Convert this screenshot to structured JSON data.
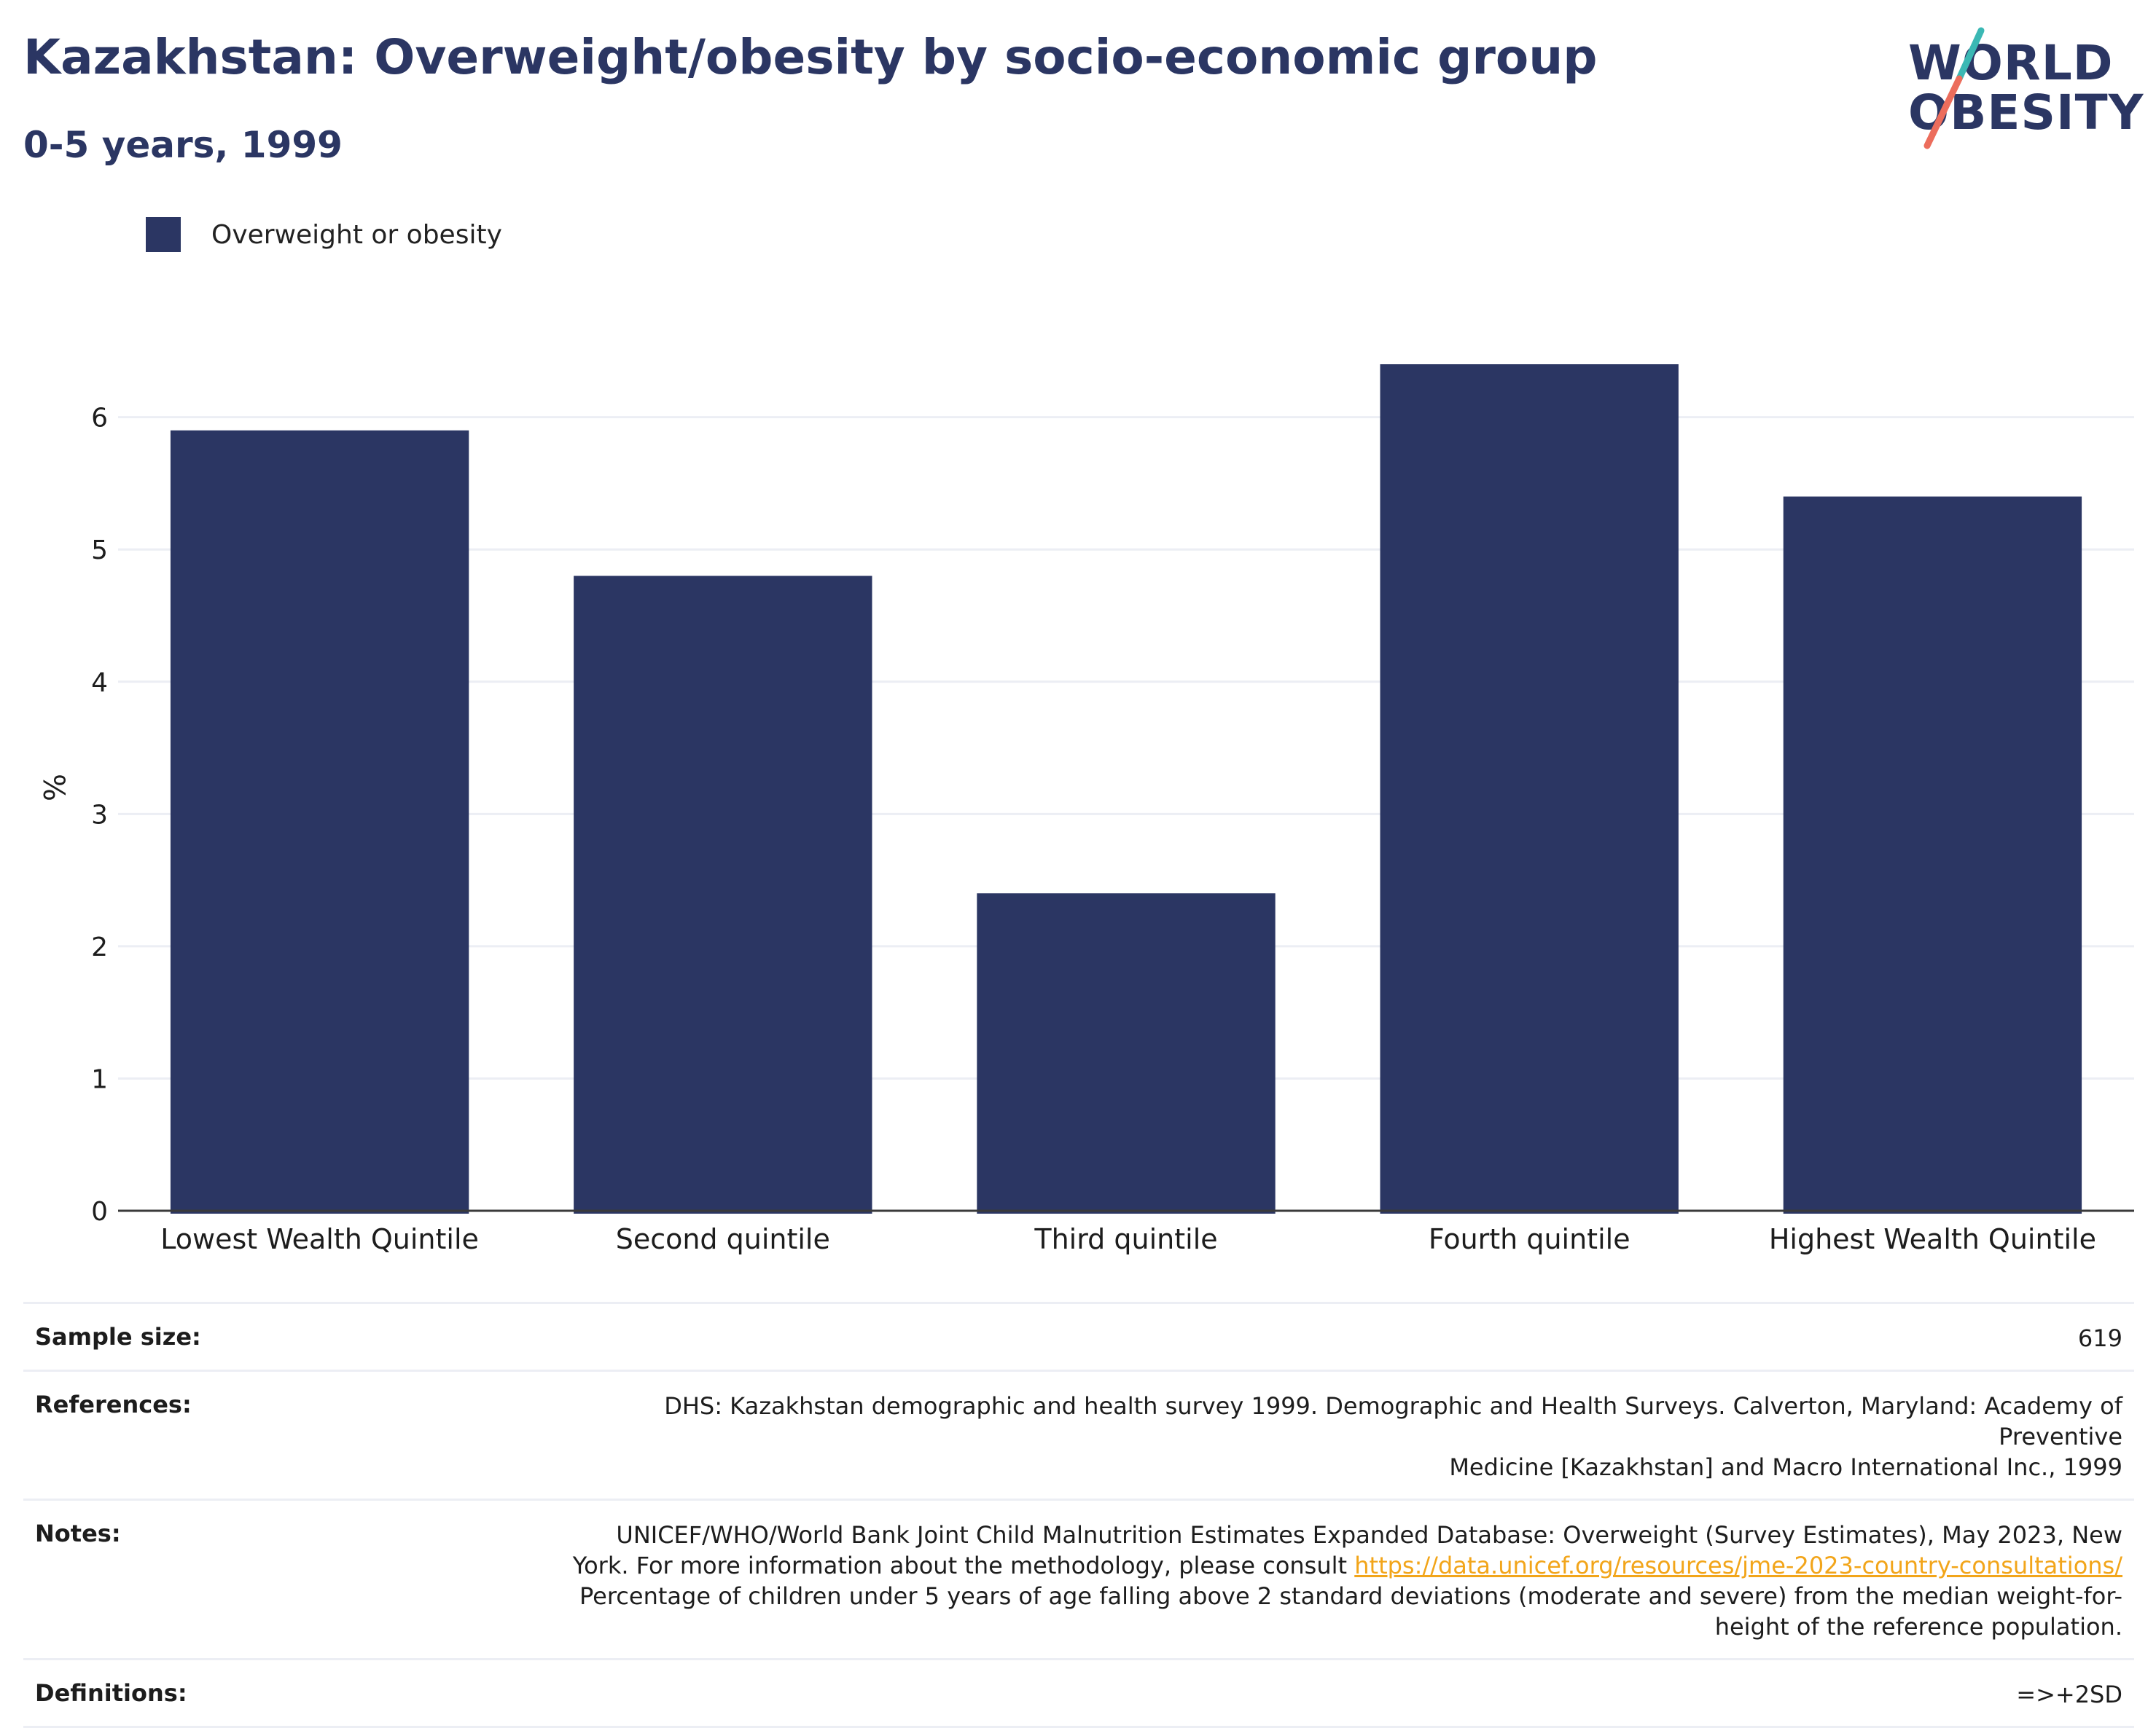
{
  "header": {
    "title": "Kazakhstan: Overweight/obesity by socio-economic group",
    "subtitle": "0-5 years, 1999"
  },
  "logo": {
    "line1": "WORLD",
    "line2": "OBESITY",
    "colors": {
      "text": "#2b3663",
      "slash_teal": "#3bb8b4",
      "slash_coral": "#ec6d5c"
    }
  },
  "legend": {
    "label": "Overweight or obesity",
    "color": "#2b3663"
  },
  "chart_data": {
    "type": "bar",
    "categories": [
      "Lowest Wealth Quintile",
      "Second quintile",
      "Third quintile",
      "Fourth quintile",
      "Highest Wealth Quintile"
    ],
    "series": [
      {
        "name": "Overweight or obesity",
        "values": [
          5.9,
          4.8,
          2.4,
          6.4,
          5.4
        ],
        "color": "#2b3663"
      }
    ],
    "ylabel": "%",
    "xlabel": "",
    "ylim": [
      0,
      6.4
    ],
    "yticks": [
      0,
      1,
      2,
      3,
      4,
      5,
      6
    ],
    "grid": true,
    "legend_position": "top-left"
  },
  "info": {
    "sample_size_label": "Sample size:",
    "sample_size_value": "619",
    "references_label": "References:",
    "references_line1": "DHS: Kazakhstan demographic and health survey 1999. Demographic and Health Surveys. Calverton, Maryland: Academy of Preventive",
    "references_line2": "Medicine [Kazakhstan] and Macro International Inc., 1999",
    "notes_label": "Notes:",
    "notes_line1": "UNICEF/WHO/World Bank Joint Child Malnutrition Estimates Expanded Database: Overweight (Survey Estimates), May 2023, New",
    "notes_line2_prefix": "York. For more information about the methodology, please consult",
    "notes_link": "https://data.unicef.org/resources/jme-2023-country-consultations/",
    "notes_line3": "Percentage of children under 5 years of age falling above 2 standard deviations (moderate and severe) from the median weight-for-",
    "notes_line4": "height of the reference population.",
    "definitions_label": "Definitions:",
    "definitions_value": "=>+2SD"
  }
}
